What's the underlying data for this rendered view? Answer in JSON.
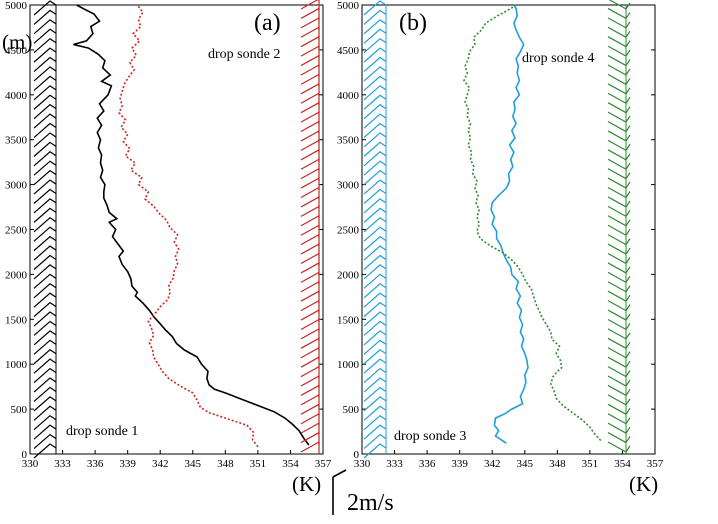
{
  "figure": {
    "y_unit": "(m)",
    "x_unit": "(K)",
    "scale_label": "2m/s"
  },
  "chart_data": [
    {
      "type": "line",
      "panel_label": "(a)",
      "x_ticks": [
        "330",
        "333",
        "336",
        "339",
        "342",
        "345",
        "348",
        "351",
        "354",
        "357"
      ],
      "y_ticks": [
        "0",
        "500",
        "1000",
        "1500",
        "2000",
        "2500",
        "3000",
        "3500",
        "4000",
        "4500",
        "5000"
      ],
      "xlim": [
        330,
        357
      ],
      "ylim": [
        0,
        5000
      ],
      "x_label": "(K)",
      "y_label": "(m)",
      "annotations": [
        "drop sonde 1",
        "drop sonde 2"
      ],
      "series": [
        {
          "label": "drop sonde 1",
          "color": "#000000",
          "style": "solid",
          "points": [
            [
              355.7,
              100
            ],
            [
              355.2,
              180
            ],
            [
              354.8,
              260
            ],
            [
              354.2,
              330
            ],
            [
              353.5,
              400
            ],
            [
              352.5,
              470
            ],
            [
              351.0,
              540
            ],
            [
              349.5,
              610
            ],
            [
              348.0,
              680
            ],
            [
              347.0,
              720
            ],
            [
              346.5,
              770
            ],
            [
              346.3,
              840
            ],
            [
              346.4,
              920
            ],
            [
              345.8,
              1000
            ],
            [
              345.4,
              1080
            ],
            [
              344.2,
              1160
            ],
            [
              343.5,
              1230
            ],
            [
              343.1,
              1310
            ],
            [
              342.5,
              1380
            ],
            [
              342.0,
              1450
            ],
            [
              341.4,
              1530
            ],
            [
              341.0,
              1600
            ],
            [
              340.4,
              1680
            ],
            [
              339.7,
              1760
            ],
            [
              339.9,
              1800
            ],
            [
              339.4,
              1870
            ],
            [
              339.3,
              1950
            ],
            [
              339.0,
              2030
            ],
            [
              338.5,
              2110
            ],
            [
              338.2,
              2200
            ],
            [
              338.6,
              2260
            ],
            [
              338.1,
              2340
            ],
            [
              337.6,
              2420
            ],
            [
              337.9,
              2500
            ],
            [
              337.3,
              2580
            ],
            [
              338.0,
              2620
            ],
            [
              337.3,
              2690
            ],
            [
              337.1,
              2770
            ],
            [
              336.8,
              2850
            ],
            [
              336.8,
              2920
            ],
            [
              336.9,
              3000
            ],
            [
              336.5,
              3080
            ],
            [
              336.7,
              3160
            ],
            [
              336.5,
              3240
            ],
            [
              336.6,
              3330
            ],
            [
              336.3,
              3410
            ],
            [
              336.5,
              3500
            ],
            [
              336.2,
              3580
            ],
            [
              336.6,
              3660
            ],
            [
              336.2,
              3740
            ],
            [
              336.8,
              3820
            ],
            [
              336.4,
              3900
            ],
            [
              337.2,
              4000
            ],
            [
              337.5,
              4100
            ],
            [
              336.6,
              4150
            ],
            [
              337.4,
              4220
            ],
            [
              336.7,
              4300
            ],
            [
              336.9,
              4380
            ],
            [
              336.3,
              4450
            ],
            [
              335.4,
              4520
            ],
            [
              334.0,
              4560
            ],
            [
              335.2,
              4600
            ],
            [
              335.8,
              4680
            ],
            [
              335.6,
              4760
            ],
            [
              336.4,
              4820
            ],
            [
              335.9,
              4900
            ],
            [
              334.9,
              4960
            ],
            [
              334.3,
              5000
            ]
          ]
        },
        {
          "label": "drop sonde 2",
          "color": "#c8281e",
          "style": "dotted",
          "points": [
            [
              351.0,
              80
            ],
            [
              350.5,
              160
            ],
            [
              350.6,
              240
            ],
            [
              350.0,
              320
            ],
            [
              348.0,
              400
            ],
            [
              346.5,
              460
            ],
            [
              345.7,
              520
            ],
            [
              345.4,
              600
            ],
            [
              345.0,
              680
            ],
            [
              343.8,
              760
            ],
            [
              342.8,
              840
            ],
            [
              342.2,
              920
            ],
            [
              341.8,
              1000
            ],
            [
              341.4,
              1080
            ],
            [
              341.3,
              1160
            ],
            [
              341.0,
              1240
            ],
            [
              341.4,
              1320
            ],
            [
              341.2,
              1400
            ],
            [
              340.9,
              1480
            ],
            [
              341.5,
              1560
            ],
            [
              342.0,
              1640
            ],
            [
              342.7,
              1720
            ],
            [
              342.9,
              1800
            ],
            [
              342.8,
              1880
            ],
            [
              343.2,
              1960
            ],
            [
              343.3,
              2040
            ],
            [
              343.6,
              2120
            ],
            [
              343.4,
              2200
            ],
            [
              343.7,
              2280
            ],
            [
              343.3,
              2360
            ],
            [
              343.6,
              2440
            ],
            [
              342.9,
              2520
            ],
            [
              342.6,
              2600
            ],
            [
              341.9,
              2680
            ],
            [
              341.4,
              2760
            ],
            [
              340.6,
              2840
            ],
            [
              340.9,
              2920
            ],
            [
              340.0,
              3000
            ],
            [
              340.3,
              3080
            ],
            [
              339.3,
              3160
            ],
            [
              339.7,
              3240
            ],
            [
              338.8,
              3320
            ],
            [
              339.2,
              3400
            ],
            [
              338.6,
              3480
            ],
            [
              339.0,
              3560
            ],
            [
              338.4,
              3640
            ],
            [
              338.8,
              3720
            ],
            [
              338.2,
              3800
            ],
            [
              338.5,
              3880
            ],
            [
              338.3,
              3960
            ],
            [
              338.5,
              4040
            ],
            [
              338.7,
              4120
            ],
            [
              339.1,
              4200
            ],
            [
              339.6,
              4280
            ],
            [
              339.2,
              4360
            ],
            [
              339.8,
              4440
            ],
            [
              339.4,
              4520
            ],
            [
              340.1,
              4600
            ],
            [
              339.5,
              4680
            ],
            [
              340.2,
              4760
            ],
            [
              340.0,
              4840
            ],
            [
              340.4,
              4920
            ],
            [
              339.9,
              5000
            ]
          ]
        }
      ]
    },
    {
      "type": "line",
      "panel_label": "(b)",
      "x_ticks": [
        "330",
        "333",
        "336",
        "339",
        "342",
        "345",
        "348",
        "351",
        "354",
        "357"
      ],
      "y_ticks": [
        "0",
        "500",
        "1000",
        "1500",
        "2000",
        "2500",
        "3000",
        "3500",
        "4000",
        "4500",
        "5000"
      ],
      "xlim": [
        330,
        357
      ],
      "ylim": [
        0,
        5000
      ],
      "x_label": "(K)",
      "y_label": "",
      "annotations": [
        "drop sonde 3",
        "drop sonde 4"
      ],
      "series": [
        {
          "label": "drop sonde 3",
          "color": "#1f9fd9",
          "style": "solid",
          "points": [
            [
              343.3,
              120
            ],
            [
              342.3,
              200
            ],
            [
              342.6,
              260
            ],
            [
              342.2,
              320
            ],
            [
              342.3,
              400
            ],
            [
              343.2,
              450
            ],
            [
              343.8,
              500
            ],
            [
              344.8,
              560
            ],
            [
              344.6,
              640
            ],
            [
              344.9,
              720
            ],
            [
              345.1,
              800
            ],
            [
              345.0,
              880
            ],
            [
              345.3,
              960
            ],
            [
              345.2,
              1040
            ],
            [
              345.0,
              1120
            ],
            [
              344.7,
              1200
            ],
            [
              344.9,
              1280
            ],
            [
              344.6,
              1360
            ],
            [
              344.8,
              1440
            ],
            [
              344.5,
              1520
            ],
            [
              344.7,
              1600
            ],
            [
              344.3,
              1680
            ],
            [
              344.6,
              1760
            ],
            [
              344.2,
              1840
            ],
            [
              344.4,
              1920
            ],
            [
              343.8,
              2000
            ],
            [
              343.7,
              2080
            ],
            [
              343.3,
              2160
            ],
            [
              343.0,
              2240
            ],
            [
              342.8,
              2320
            ],
            [
              342.4,
              2400
            ],
            [
              342.4,
              2480
            ],
            [
              342.0,
              2560
            ],
            [
              342.2,
              2640
            ],
            [
              341.9,
              2720
            ],
            [
              342.0,
              2800
            ],
            [
              342.6,
              2880
            ],
            [
              343.3,
              2960
            ],
            [
              343.6,
              3040
            ],
            [
              343.5,
              3120
            ],
            [
              343.9,
              3200
            ],
            [
              343.7,
              3280
            ],
            [
              344.0,
              3360
            ],
            [
              343.6,
              3440
            ],
            [
              344.1,
              3520
            ],
            [
              343.8,
              3600
            ],
            [
              344.2,
              3680
            ],
            [
              343.9,
              3760
            ],
            [
              344.1,
              3840
            ],
            [
              344.0,
              3920
            ],
            [
              344.5,
              4000
            ],
            [
              344.2,
              4080
            ],
            [
              344.5,
              4160
            ],
            [
              344.3,
              4240
            ],
            [
              344.4,
              4320
            ],
            [
              344.2,
              4400
            ],
            [
              344.6,
              4480
            ],
            [
              344.9,
              4560
            ],
            [
              344.5,
              4640
            ],
            [
              344.2,
              4720
            ],
            [
              344.0,
              4800
            ],
            [
              344.3,
              4880
            ],
            [
              344.2,
              4960
            ],
            [
              344.0,
              5000
            ]
          ]
        },
        {
          "label": "drop sonde 4",
          "color": "#2e8b2e",
          "style": "dotted",
          "points": [
            [
              352.0,
              150
            ],
            [
              351.4,
              230
            ],
            [
              351.0,
              300
            ],
            [
              350.3,
              380
            ],
            [
              349.4,
              460
            ],
            [
              348.5,
              540
            ],
            [
              347.9,
              620
            ],
            [
              347.7,
              700
            ],
            [
              347.4,
              780
            ],
            [
              347.6,
              860
            ],
            [
              348.0,
              920
            ],
            [
              348.4,
              960
            ],
            [
              348.3,
              1040
            ],
            [
              347.9,
              1120
            ],
            [
              348.2,
              1200
            ],
            [
              347.5,
              1280
            ],
            [
              347.4,
              1360
            ],
            [
              347.0,
              1440
            ],
            [
              346.6,
              1520
            ],
            [
              346.3,
              1600
            ],
            [
              346.0,
              1680
            ],
            [
              345.8,
              1760
            ],
            [
              345.6,
              1840
            ],
            [
              345.1,
              1920
            ],
            [
              344.8,
              2000
            ],
            [
              344.4,
              2080
            ],
            [
              343.8,
              2160
            ],
            [
              343.0,
              2240
            ],
            [
              341.8,
              2320
            ],
            [
              340.9,
              2400
            ],
            [
              340.6,
              2480
            ],
            [
              340.8,
              2560
            ],
            [
              340.6,
              2640
            ],
            [
              340.8,
              2720
            ],
            [
              340.5,
              2800
            ],
            [
              340.7,
              2880
            ],
            [
              340.4,
              2960
            ],
            [
              340.6,
              3040
            ],
            [
              340.2,
              3120
            ],
            [
              340.3,
              3200
            ],
            [
              340.0,
              3280
            ],
            [
              340.1,
              3360
            ],
            [
              339.8,
              3440
            ],
            [
              340.0,
              3520
            ],
            [
              339.8,
              3600
            ],
            [
              340.0,
              3680
            ],
            [
              339.7,
              3760
            ],
            [
              339.8,
              3840
            ],
            [
              339.5,
              3920
            ],
            [
              339.7,
              4000
            ],
            [
              339.9,
              4080
            ],
            [
              339.4,
              4160
            ],
            [
              339.7,
              4240
            ],
            [
              339.5,
              4320
            ],
            [
              339.8,
              4400
            ],
            [
              339.9,
              4480
            ],
            [
              340.4,
              4560
            ],
            [
              340.3,
              4640
            ],
            [
              341.0,
              4720
            ],
            [
              341.4,
              4800
            ],
            [
              342.5,
              4880
            ],
            [
              343.7,
              4960
            ],
            [
              344.2,
              5000
            ]
          ]
        }
      ]
    }
  ]
}
